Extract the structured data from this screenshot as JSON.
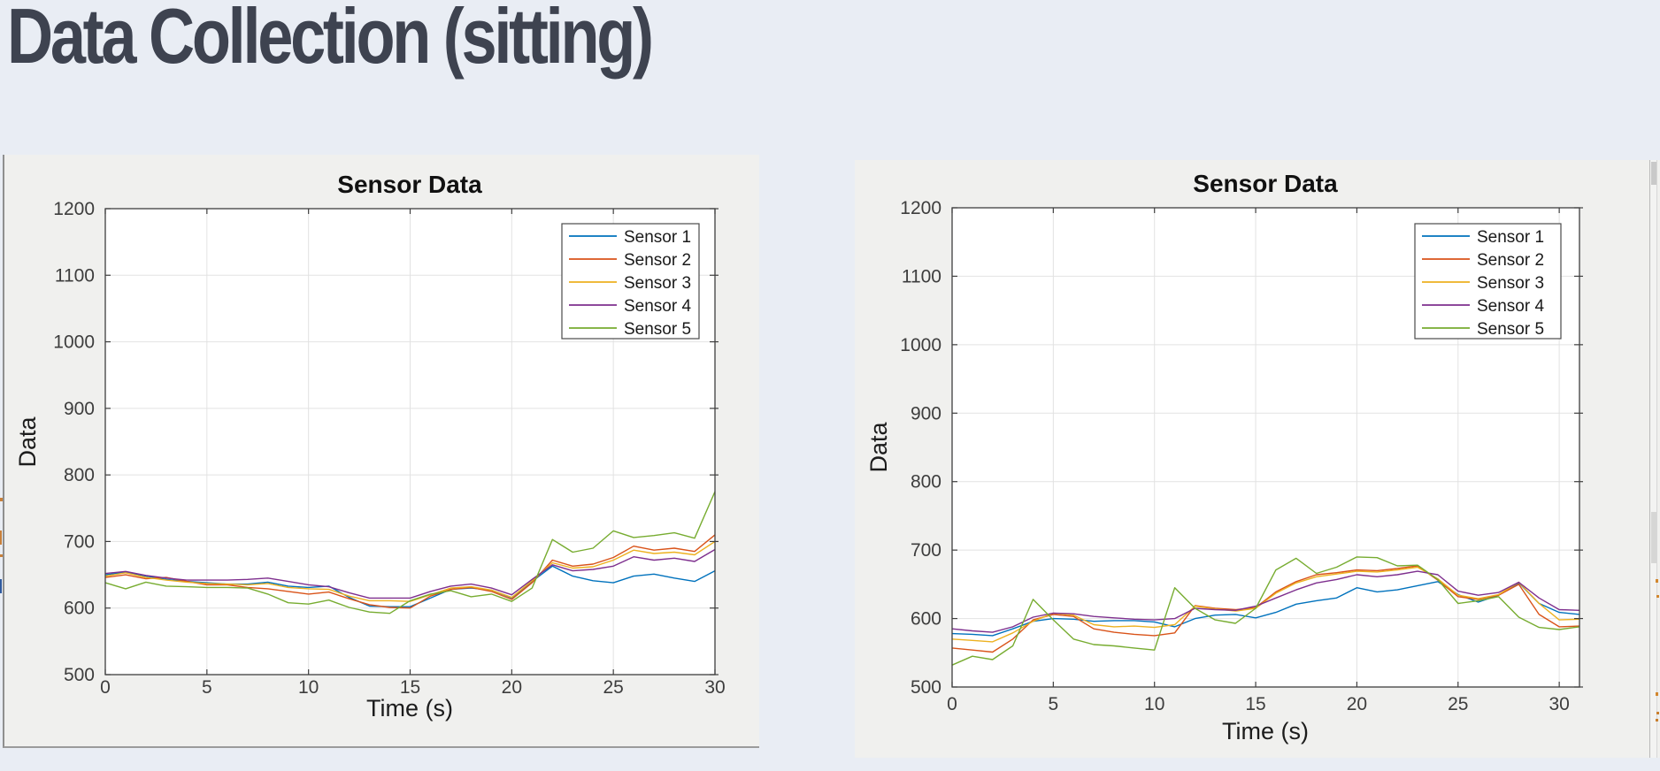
{
  "page": {
    "title": "Data Collection (sitting)"
  },
  "chart_data": [
    {
      "type": "line",
      "title": "Sensor Data",
      "xlabel": "Time (s)",
      "ylabel": "Data",
      "xlim": [
        0,
        30
      ],
      "ylim": [
        500,
        1200
      ],
      "xticks": [
        0,
        5,
        10,
        15,
        20,
        25,
        30
      ],
      "yticks": [
        500,
        600,
        700,
        800,
        900,
        1000,
        1100,
        1200
      ],
      "grid": true,
      "legend_position": "northeast",
      "legend_labels": [
        "Sensor 1",
        "Sensor 2",
        "Sensor 3",
        "Sensor 4",
        "Sensor 5"
      ],
      "x": [
        0,
        1,
        2,
        3,
        4,
        5,
        6,
        7,
        8,
        9,
        10,
        11,
        12,
        13,
        14,
        15,
        16,
        17,
        18,
        19,
        20,
        21,
        22,
        23,
        24,
        25,
        26,
        27,
        28,
        29,
        30
      ],
      "series": [
        {
          "name": "Sensor 1",
          "color": "#0072BD",
          "values": [
            650,
            654,
            648,
            643,
            640,
            638,
            636,
            636,
            639,
            633,
            631,
            633,
            616,
            603,
            602,
            602,
            615,
            628,
            630,
            627,
            615,
            640,
            663,
            648,
            641,
            638,
            648,
            651,
            645,
            640,
            656
          ]
        },
        {
          "name": "Sensor 2",
          "color": "#D95319",
          "values": [
            646,
            650,
            644,
            646,
            640,
            635,
            635,
            631,
            629,
            625,
            621,
            624,
            614,
            605,
            601,
            600,
            618,
            628,
            631,
            625,
            613,
            638,
            672,
            663,
            666,
            676,
            693,
            687,
            690,
            685,
            710
          ]
        },
        {
          "name": "Sensor 3",
          "color": "#EDB120",
          "values": [
            648,
            653,
            646,
            642,
            639,
            637,
            636,
            635,
            637,
            631,
            629,
            628,
            618,
            611,
            611,
            610,
            620,
            630,
            632,
            627,
            616,
            641,
            668,
            660,
            662,
            672,
            687,
            682,
            684,
            680,
            700
          ]
        },
        {
          "name": "Sensor 4",
          "color": "#7E2F8E",
          "values": [
            652,
            655,
            649,
            645,
            642,
            642,
            642,
            643,
            645,
            640,
            635,
            632,
            623,
            615,
            615,
            615,
            625,
            633,
            636,
            630,
            620,
            643,
            665,
            656,
            658,
            663,
            677,
            672,
            675,
            670,
            688
          ]
        },
        {
          "name": "Sensor 5",
          "color": "#77AC30",
          "values": [
            638,
            629,
            639,
            633,
            632,
            631,
            631,
            630,
            621,
            608,
            606,
            612,
            601,
            594,
            592,
            611,
            621,
            626,
            617,
            621,
            610,
            630,
            703,
            684,
            690,
            716,
            706,
            709,
            713,
            705,
            775
          ]
        }
      ]
    },
    {
      "type": "line",
      "title": "Sensor Data",
      "xlabel": "Time (s)",
      "ylabel": "Data",
      "xlim": [
        0,
        31
      ],
      "ylim": [
        500,
        1200
      ],
      "xticks": [
        0,
        5,
        10,
        15,
        20,
        25,
        30
      ],
      "yticks": [
        500,
        600,
        700,
        800,
        900,
        1000,
        1100,
        1200
      ],
      "grid": true,
      "legend_position": "northeast",
      "legend_labels": [
        "Sensor 1",
        "Sensor 2",
        "Sensor 3",
        "Sensor 4",
        "Sensor 5"
      ],
      "x": [
        0,
        1,
        2,
        3,
        4,
        5,
        6,
        7,
        8,
        9,
        10,
        11,
        12,
        13,
        14,
        15,
        16,
        17,
        18,
        19,
        20,
        21,
        22,
        23,
        24,
        25,
        26,
        27,
        28,
        29,
        30,
        31
      ],
      "series": [
        {
          "name": "Sensor 1",
          "color": "#0072BD",
          "values": [
            578,
            577,
            575,
            585,
            596,
            600,
            599,
            596,
            597,
            597,
            595,
            588,
            600,
            605,
            606,
            601,
            609,
            621,
            626,
            630,
            645,
            639,
            642,
            648,
            654,
            635,
            624,
            634,
            652,
            622,
            609,
            606
          ]
        },
        {
          "name": "Sensor 2",
          "color": "#D95319",
          "values": [
            557,
            554,
            551,
            570,
            598,
            606,
            603,
            585,
            580,
            577,
            575,
            579,
            619,
            615,
            613,
            616,
            639,
            654,
            664,
            667,
            671,
            670,
            673,
            677,
            656,
            632,
            628,
            634,
            650,
            606,
            588,
            589
          ]
        },
        {
          "name": "Sensor 3",
          "color": "#EDB120",
          "values": [
            570,
            568,
            566,
            579,
            596,
            608,
            605,
            591,
            588,
            589,
            587,
            591,
            618,
            614,
            611,
            615,
            637,
            652,
            661,
            665,
            669,
            668,
            671,
            675,
            658,
            634,
            629,
            635,
            653,
            622,
            598,
            599
          ]
        },
        {
          "name": "Sensor 4",
          "color": "#7E2F8E",
          "values": [
            585,
            582,
            580,
            588,
            602,
            608,
            607,
            603,
            601,
            599,
            598,
            600,
            615,
            613,
            612,
            618,
            630,
            642,
            652,
            657,
            664,
            661,
            664,
            669,
            664,
            640,
            634,
            638,
            653,
            630,
            613,
            612
          ]
        },
        {
          "name": "Sensor 5",
          "color": "#77AC30",
          "values": [
            532,
            545,
            540,
            560,
            628,
            598,
            570,
            562,
            560,
            557,
            554,
            645,
            615,
            598,
            593,
            615,
            671,
            688,
            666,
            675,
            690,
            689,
            677,
            678,
            657,
            622,
            626,
            632,
            602,
            587,
            584,
            588
          ]
        }
      ]
    }
  ],
  "colors": {
    "heading": "#3e4350",
    "page_background": "#e9edf4",
    "figure_background": "#f0f0ee",
    "plot_background": "#ffffff",
    "grid": "#e2e2e2",
    "axis": "#3f3f3f"
  }
}
